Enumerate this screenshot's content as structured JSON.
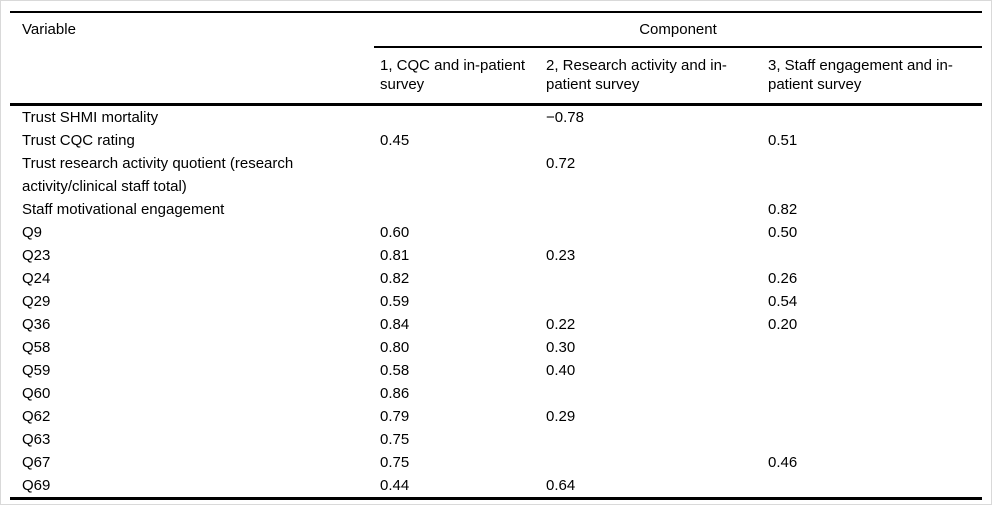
{
  "table": {
    "variable_header": "Variable",
    "component_header": "Component",
    "columns": [
      "1, CQC and in-patient survey",
      "2, Research activity and in-patient survey",
      "3, Staff engagement and in-patient survey"
    ],
    "rows": [
      {
        "variable": "Trust SHMI mortality",
        "c1": "",
        "c2": "−0.78",
        "c3": ""
      },
      {
        "variable": "Trust CQC rating",
        "c1": "0.45",
        "c2": "",
        "c3": "0.51"
      },
      {
        "variable": "Trust research activity quotient (research activity/clinical staff total)",
        "c1": "",
        "c2": "0.72",
        "c3": ""
      },
      {
        "variable": "Staff motivational engagement",
        "c1": "",
        "c2": "",
        "c3": "0.82"
      },
      {
        "variable": "Q9",
        "c1": "0.60",
        "c2": "",
        "c3": "0.50"
      },
      {
        "variable": "Q23",
        "c1": "0.81",
        "c2": "0.23",
        "c3": ""
      },
      {
        "variable": "Q24",
        "c1": "0.82",
        "c2": "",
        "c3": "0.26"
      },
      {
        "variable": "Q29",
        "c1": "0.59",
        "c2": "",
        "c3": "0.54"
      },
      {
        "variable": "Q36",
        "c1": "0.84",
        "c2": "0.22",
        "c3": "0.20"
      },
      {
        "variable": "Q58",
        "c1": "0.80",
        "c2": "0.30",
        "c3": ""
      },
      {
        "variable": "Q59",
        "c1": "0.58",
        "c2": "0.40",
        "c3": ""
      },
      {
        "variable": "Q60",
        "c1": "0.86",
        "c2": "",
        "c3": ""
      },
      {
        "variable": "Q62",
        "c1": "0.79",
        "c2": "0.29",
        "c3": ""
      },
      {
        "variable": "Q63",
        "c1": "0.75",
        "c2": "",
        "c3": ""
      },
      {
        "variable": "Q67",
        "c1": "0.75",
        "c2": "",
        "c3": "0.46"
      },
      {
        "variable": "Q69",
        "c1": "0.44",
        "c2": "0.64",
        "c3": ""
      }
    ]
  }
}
